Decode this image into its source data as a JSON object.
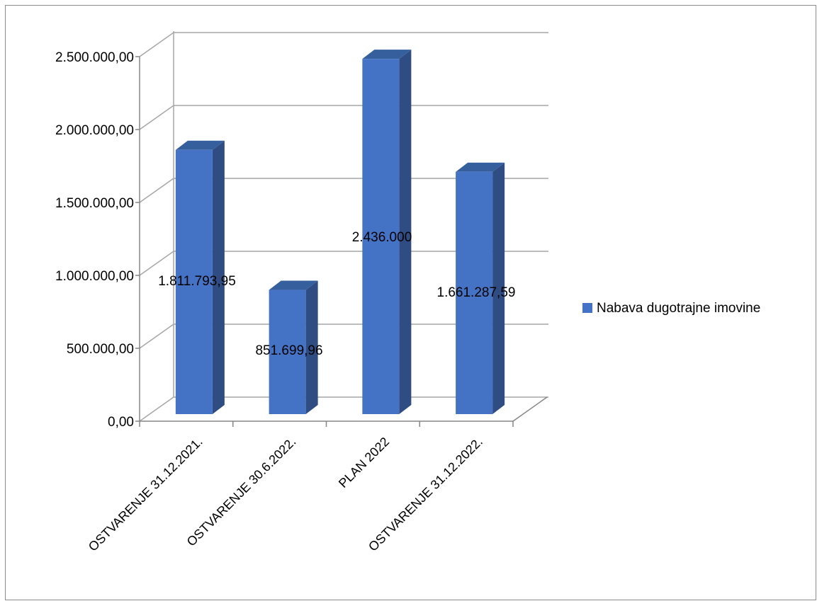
{
  "chart_data": {
    "type": "bar",
    "title": "",
    "xlabel": "",
    "ylabel": "",
    "categories": [
      "OSTVARENJE 31.12.2021.",
      "OSTVARENJE 30.6.2022.",
      "PLAN 2022",
      "OSTVARENJE 31.12.2022."
    ],
    "series": [
      {
        "name": "Nabava dugotrajne imovine",
        "values": [
          1811793.95,
          851699.96,
          2436000,
          1661287.59
        ],
        "data_labels": [
          "1.811.793,95",
          "851.699,96",
          "2.436.000",
          "1.661.287,59"
        ],
        "color": "#4472C4"
      }
    ],
    "ylim": [
      0,
      2500000
    ],
    "yticks": [
      0,
      500000,
      1000000,
      1500000,
      2000000,
      2500000
    ],
    "ytick_labels": [
      "0,00",
      "500.000,00",
      "1.000.000,00",
      "1.500.000,00",
      "2.000.000,00",
      "2.500.000,00"
    ],
    "grid": true,
    "three_d": true,
    "legend_position": "right",
    "colors": {
      "bar_front": "#4472C4",
      "bar_side": "#2F4D82",
      "bar_top": "#365F9E",
      "grid": "#a6a6a6",
      "axis": "#868686"
    }
  }
}
